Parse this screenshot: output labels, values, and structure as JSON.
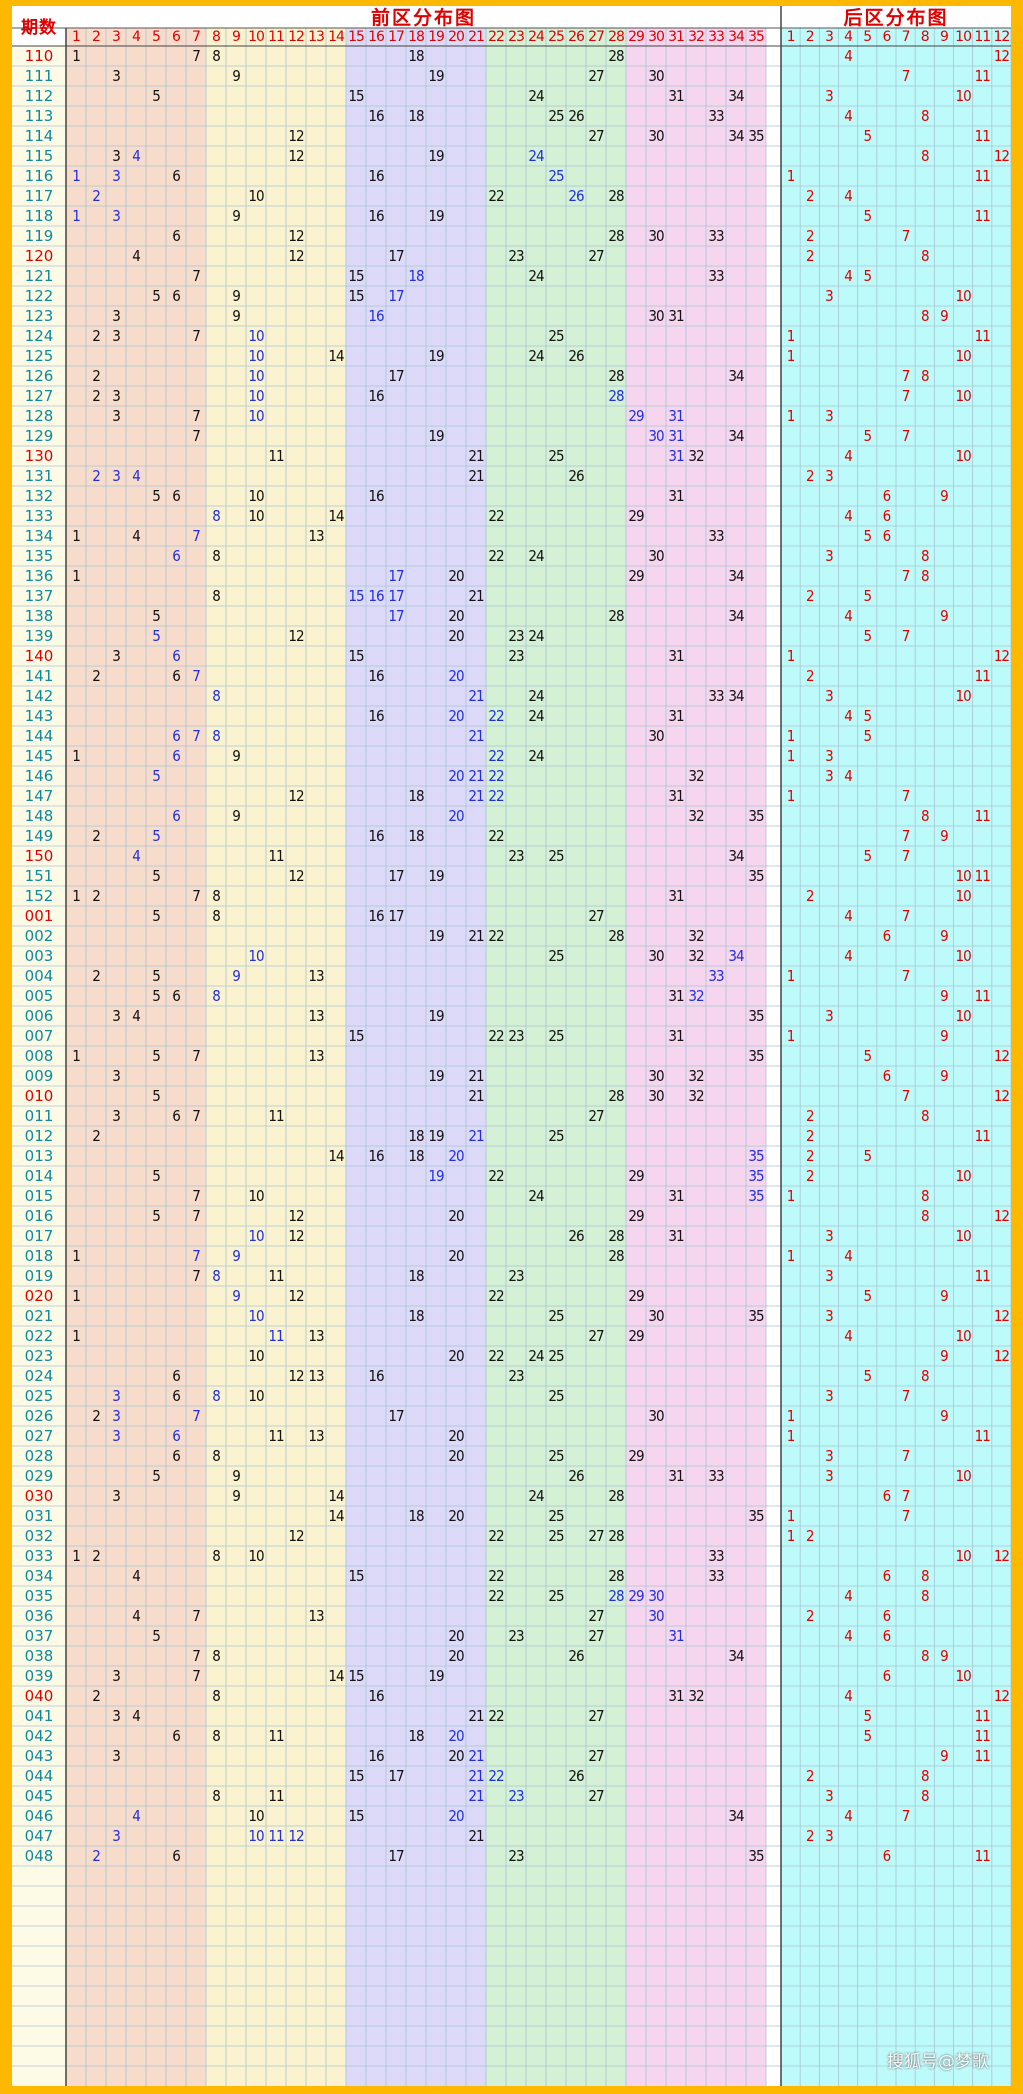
{
  "header": {
    "period_label": "期数",
    "front_title": "前区分布图",
    "back_title": "后区分布图"
  },
  "front_numbers": [
    "1",
    "2",
    "3",
    "4",
    "5",
    "6",
    "7",
    "8",
    "9",
    "10",
    "11",
    "12",
    "13",
    "14",
    "15",
    "16",
    "17",
    "18",
    "19",
    "20",
    "21",
    "22",
    "23",
    "24",
    "25",
    "26",
    "27",
    "28",
    "29",
    "30",
    "31",
    "32",
    "33",
    "34",
    "35"
  ],
  "back_numbers": [
    "1",
    "2",
    "3",
    "4",
    "5",
    "6",
    "7",
    "8",
    "9",
    "10",
    "11",
    "12"
  ],
  "colors": {
    "outer": "#ffb800",
    "zone1": "#f7dccb",
    "zone2": "#fbf3cf",
    "zone3": "#dcdaf8",
    "zone4": "#d4f0d5",
    "zone5": "#f6d6ef",
    "back_zone": "#bdfafa",
    "period_col": "#fdfbe6",
    "grid": "#a9c4d3",
    "red": "#e00000",
    "teal": "#0b8aa0",
    "blue": "#1f2fe0"
  },
  "watermark": "搜狐号@梦歌",
  "rows": [
    {
      "p": "110",
      "red": true,
      "f": [
        1,
        7,
        8,
        18,
        28
      ],
      "b": [
        4,
        12
      ]
    },
    {
      "p": "111",
      "f": [
        3,
        9,
        19,
        27,
        30
      ],
      "b": [
        7,
        11
      ]
    },
    {
      "p": "112",
      "f": [
        5,
        15,
        24,
        31,
        34
      ],
      "b": [
        3,
        10
      ]
    },
    {
      "p": "113",
      "f": [
        16,
        18,
        25,
        26,
        33
      ],
      "b": [
        4,
        8
      ]
    },
    {
      "p": "114",
      "f": [
        12,
        27,
        30,
        34,
        35
      ],
      "b": [
        5,
        11
      ]
    },
    {
      "p": "115",
      "f": [
        3,
        4,
        12,
        19,
        24
      ],
      "bl": [
        4,
        24
      ],
      "b": [
        8,
        12
      ]
    },
    {
      "p": "116",
      "f": [
        1,
        3,
        6,
        16,
        25
      ],
      "bl": [
        1,
        3,
        25
      ],
      "b": [
        1,
        11
      ]
    },
    {
      "p": "117",
      "f": [
        2,
        10,
        22,
        26,
        28
      ],
      "bl": [
        2,
        26
      ],
      "b": [
        2,
        4
      ]
    },
    {
      "p": "118",
      "f": [
        1,
        3,
        9,
        16,
        19
      ],
      "bl": [
        1,
        3
      ],
      "b": [
        5,
        11
      ]
    },
    {
      "p": "119",
      "f": [
        6,
        12,
        28,
        30,
        33
      ],
      "b": [
        2,
        7
      ]
    },
    {
      "p": "120",
      "red": true,
      "f": [
        4,
        12,
        17,
        23,
        27
      ],
      "b": [
        2,
        8
      ]
    },
    {
      "p": "121",
      "f": [
        7,
        15,
        18,
        24,
        33
      ],
      "bl": [
        18
      ],
      "b": [
        4,
        5
      ]
    },
    {
      "p": "122",
      "f": [
        5,
        6,
        9,
        15,
        17
      ],
      "bl": [
        17
      ],
      "b": [
        3,
        10
      ]
    },
    {
      "p": "123",
      "f": [
        3,
        9,
        16,
        30,
        31
      ],
      "bl": [
        16
      ],
      "b": [
        8,
        9
      ]
    },
    {
      "p": "124",
      "f": [
        2,
        3,
        7,
        10,
        25
      ],
      "bl": [
        10
      ],
      "b": [
        1,
        11
      ]
    },
    {
      "p": "125",
      "f": [
        10,
        14,
        19,
        24,
        26
      ],
      "bl": [
        10
      ],
      "b": [
        1,
        10
      ]
    },
    {
      "p": "126",
      "f": [
        2,
        10,
        17,
        28,
        34
      ],
      "bl": [
        10
      ],
      "b": [
        7,
        8
      ]
    },
    {
      "p": "127",
      "f": [
        2,
        3,
        10,
        16,
        28
      ],
      "bl": [
        10,
        28
      ],
      "b": [
        7,
        10
      ]
    },
    {
      "p": "128",
      "f": [
        3,
        7,
        10,
        29,
        31
      ],
      "bl": [
        10,
        29,
        31
      ],
      "b": [
        1,
        3
      ]
    },
    {
      "p": "129",
      "f": [
        7,
        19,
        30,
        31,
        34
      ],
      "bl": [
        30,
        31
      ],
      "b": [
        5,
        7
      ]
    },
    {
      "p": "130",
      "red": true,
      "f": [
        11,
        21,
        25,
        31,
        32
      ],
      "bl": [
        31
      ],
      "b": [
        4,
        10
      ]
    },
    {
      "p": "131",
      "f": [
        2,
        3,
        4,
        21,
        26
      ],
      "bl": [
        2,
        3,
        4
      ],
      "b": [
        2,
        3
      ]
    },
    {
      "p": "132",
      "f": [
        5,
        6,
        10,
        16,
        31
      ],
      "b": [
        6,
        9
      ]
    },
    {
      "p": "133",
      "f": [
        8,
        10,
        14,
        22,
        29
      ],
      "bl": [
        8
      ],
      "b": [
        4,
        6
      ]
    },
    {
      "p": "134",
      "f": [
        1,
        4,
        7,
        13,
        33
      ],
      "bl": [
        7
      ],
      "b": [
        5,
        6
      ]
    },
    {
      "p": "135",
      "f": [
        6,
        8,
        22,
        24,
        30
      ],
      "bl": [
        6
      ],
      "b": [
        3,
        8
      ]
    },
    {
      "p": "136",
      "f": [
        1,
        17,
        20,
        29,
        34
      ],
      "bl": [
        17
      ],
      "b": [
        7,
        8
      ]
    },
    {
      "p": "137",
      "f": [
        8,
        15,
        16,
        17,
        21
      ],
      "bl": [
        15,
        16,
        17
      ],
      "b": [
        2,
        5
      ]
    },
    {
      "p": "138",
      "f": [
        5,
        17,
        20,
        28,
        34
      ],
      "bl": [
        17
      ],
      "b": [
        4,
        9
      ]
    },
    {
      "p": "139",
      "f": [
        5,
        12,
        20,
        23,
        24
      ],
      "bl": [
        5
      ],
      "b": [
        5,
        7
      ]
    },
    {
      "p": "140",
      "red": true,
      "f": [
        3,
        6,
        15,
        23,
        31
      ],
      "bl": [
        6
      ],
      "b": [
        1,
        12
      ]
    },
    {
      "p": "141",
      "f": [
        2,
        6,
        7,
        16,
        20
      ],
      "bl": [
        7,
        20
      ],
      "b": [
        2,
        11
      ]
    },
    {
      "p": "142",
      "f": [
        8,
        21,
        24,
        33,
        34
      ],
      "bl": [
        8,
        21
      ],
      "b": [
        3,
        10
      ]
    },
    {
      "p": "143",
      "f": [
        16,
        20,
        22,
        24,
        31
      ],
      "bl": [
        20,
        22
      ],
      "b": [
        4,
        5
      ]
    },
    {
      "p": "144",
      "f": [
        6,
        7,
        8,
        21,
        30
      ],
      "bl": [
        6,
        7,
        8,
        21
      ],
      "b": [
        1,
        5
      ]
    },
    {
      "p": "145",
      "f": [
        1,
        6,
        9,
        22,
        24
      ],
      "bl": [
        6,
        22
      ],
      "b": [
        1,
        3
      ]
    },
    {
      "p": "146",
      "f": [
        5,
        20,
        21,
        22,
        32
      ],
      "bl": [
        5,
        20,
        21,
        22
      ],
      "b": [
        3,
        4
      ]
    },
    {
      "p": "147",
      "f": [
        12,
        18,
        21,
        22,
        31
      ],
      "bl": [
        21,
        22
      ],
      "b": [
        1,
        7
      ]
    },
    {
      "p": "148",
      "f": [
        6,
        9,
        20,
        32,
        35
      ],
      "bl": [
        6,
        20
      ],
      "b": [
        8,
        11
      ]
    },
    {
      "p": "149",
      "f": [
        2,
        5,
        16,
        18,
        22
      ],
      "bl": [
        5
      ],
      "b": [
        7,
        9
      ]
    },
    {
      "p": "150",
      "red": true,
      "f": [
        4,
        11,
        23,
        25,
        34
      ],
      "bl": [
        4
      ],
      "b": [
        5,
        7
      ]
    },
    {
      "p": "151",
      "f": [
        5,
        12,
        17,
        19,
        35
      ],
      "b": [
        10,
        11
      ]
    },
    {
      "p": "152",
      "f": [
        1,
        2,
        7,
        8,
        31
      ],
      "b": [
        2,
        10
      ]
    },
    {
      "p": "001",
      "red": true,
      "f": [
        5,
        8,
        16,
        17,
        27
      ],
      "b": [
        4,
        7
      ]
    },
    {
      "p": "002",
      "f": [
        19,
        21,
        22,
        28,
        32
      ],
      "b": [
        6,
        9
      ]
    },
    {
      "p": "003",
      "f": [
        10,
        25,
        30,
        32,
        34
      ],
      "bl": [
        10,
        34
      ],
      "b": [
        4,
        10
      ]
    },
    {
      "p": "004",
      "f": [
        2,
        5,
        9,
        13,
        33
      ],
      "bl": [
        9,
        33
      ],
      "b": [
        1,
        7
      ]
    },
    {
      "p": "005",
      "f": [
        5,
        6,
        8,
        31,
        32
      ],
      "bl": [
        8,
        32
      ],
      "b": [
        9,
        11
      ]
    },
    {
      "p": "006",
      "f": [
        3,
        4,
        13,
        19,
        35
      ],
      "b": [
        3,
        10
      ]
    },
    {
      "p": "007",
      "f": [
        15,
        22,
        23,
        25,
        31
      ],
      "b": [
        1,
        9
      ]
    },
    {
      "p": "008",
      "f": [
        1,
        5,
        7,
        13,
        35
      ],
      "b": [
        5,
        12
      ]
    },
    {
      "p": "009",
      "f": [
        3,
        19,
        21,
        30,
        32
      ],
      "b": [
        6,
        9
      ]
    },
    {
      "p": "010",
      "red": true,
      "f": [
        5,
        21,
        28,
        30,
        32
      ],
      "b": [
        7,
        12
      ]
    },
    {
      "p": "011",
      "f": [
        3,
        6,
        7,
        11,
        27
      ],
      "b": [
        2,
        8
      ]
    },
    {
      "p": "012",
      "f": [
        2,
        18,
        19,
        21,
        25
      ],
      "bl": [
        21
      ],
      "b": [
        2,
        11
      ]
    },
    {
      "p": "013",
      "f": [
        14,
        16,
        18,
        20,
        35
      ],
      "bl": [
        20,
        35
      ],
      "b": [
        2,
        5
      ]
    },
    {
      "p": "014",
      "f": [
        5,
        19,
        22,
        29,
        35
      ],
      "bl": [
        19,
        35
      ],
      "b": [
        2,
        10
      ]
    },
    {
      "p": "015",
      "f": [
        7,
        10,
        24,
        31,
        35
      ],
      "bl": [
        35
      ],
      "b": [
        1,
        8
      ]
    },
    {
      "p": "016",
      "f": [
        5,
        7,
        12,
        20,
        29
      ],
      "b": [
        8,
        12
      ]
    },
    {
      "p": "017",
      "f": [
        10,
        12,
        26,
        28,
        31
      ],
      "bl": [
        10
      ],
      "b": [
        3,
        10
      ]
    },
    {
      "p": "018",
      "f": [
        1,
        7,
        9,
        20,
        28
      ],
      "bl": [
        7,
        9
      ],
      "b": [
        1,
        4
      ]
    },
    {
      "p": "019",
      "f": [
        7,
        8,
        11,
        18,
        23
      ],
      "bl": [
        8
      ],
      "b": [
        3,
        11
      ]
    },
    {
      "p": "020",
      "red": true,
      "f": [
        1,
        9,
        12,
        22,
        29
      ],
      "bl": [
        9
      ],
      "b": [
        5,
        9
      ]
    },
    {
      "p": "021",
      "f": [
        10,
        18,
        25,
        30,
        35
      ],
      "bl": [
        10
      ],
      "b": [
        3,
        12
      ]
    },
    {
      "p": "022",
      "f": [
        1,
        11,
        13,
        27,
        29
      ],
      "bl": [
        11
      ],
      "b": [
        4,
        10
      ]
    },
    {
      "p": "023",
      "f": [
        10,
        20,
        22,
        24,
        25
      ],
      "b": [
        9,
        12
      ]
    },
    {
      "p": "024",
      "f": [
        6,
        12,
        13,
        16,
        23
      ],
      "b": [
        5,
        8
      ]
    },
    {
      "p": "025",
      "f": [
        3,
        6,
        8,
        10,
        25
      ],
      "bl": [
        3,
        8
      ],
      "b": [
        3,
        7
      ]
    },
    {
      "p": "026",
      "f": [
        2,
        3,
        7,
        17,
        30
      ],
      "bl": [
        3,
        7
      ],
      "b": [
        1,
        9
      ]
    },
    {
      "p": "027",
      "f": [
        3,
        6,
        11,
        13,
        20
      ],
      "bl": [
        3,
        6
      ],
      "b": [
        1,
        11
      ]
    },
    {
      "p": "028",
      "f": [
        6,
        8,
        20,
        25,
        29
      ],
      "b": [
        3,
        7
      ]
    },
    {
      "p": "029",
      "f": [
        5,
        9,
        26,
        31,
        33
      ],
      "b": [
        3,
        10
      ]
    },
    {
      "p": "030",
      "red": true,
      "f": [
        3,
        9,
        14,
        24,
        28
      ],
      "b": [
        6,
        7
      ]
    },
    {
      "p": "031",
      "f": [
        14,
        18,
        20,
        25,
        35
      ],
      "b": [
        1,
        7
      ]
    },
    {
      "p": "032",
      "f": [
        12,
        22,
        25,
        27,
        28
      ],
      "b": [
        1,
        2
      ]
    },
    {
      "p": "033",
      "f": [
        1,
        2,
        8,
        10,
        33
      ],
      "b": [
        10,
        12
      ]
    },
    {
      "p": "034",
      "f": [
        4,
        15,
        22,
        28,
        33
      ],
      "b": [
        6,
        8
      ]
    },
    {
      "p": "035",
      "f": [
        22,
        25,
        28,
        29,
        30
      ],
      "bl": [
        28,
        29,
        30
      ],
      "b": [
        4,
        8
      ]
    },
    {
      "p": "036",
      "f": [
        4,
        7,
        13,
        27,
        30
      ],
      "bl": [
        30
      ],
      "b": [
        2,
        6
      ]
    },
    {
      "p": "037",
      "f": [
        5,
        20,
        23,
        27,
        31
      ],
      "bl": [
        31
      ],
      "b": [
        4,
        6
      ]
    },
    {
      "p": "038",
      "f": [
        7,
        8,
        20,
        26,
        34
      ],
      "b": [
        8,
        9
      ]
    },
    {
      "p": "039",
      "f": [
        3,
        7,
        14,
        15,
        19
      ],
      "b": [
        6,
        10
      ]
    },
    {
      "p": "040",
      "red": true,
      "f": [
        2,
        8,
        16,
        31,
        32
      ],
      "b": [
        4,
        12
      ]
    },
    {
      "p": "041",
      "f": [
        3,
        4,
        21,
        22,
        27
      ],
      "b": [
        5,
        11
      ]
    },
    {
      "p": "042",
      "f": [
        6,
        8,
        11,
        18,
        20
      ],
      "bl": [
        20
      ],
      "b": [
        5,
        11
      ]
    },
    {
      "p": "043",
      "f": [
        3,
        16,
        20,
        21,
        27
      ],
      "bl": [
        21
      ],
      "b": [
        9,
        11
      ]
    },
    {
      "p": "044",
      "f": [
        15,
        17,
        21,
        22,
        26
      ],
      "bl": [
        21,
        22
      ],
      "b": [
        2,
        8
      ]
    },
    {
      "p": "045",
      "f": [
        8,
        11,
        21,
        23,
        27
      ],
      "bl": [
        21,
        23
      ],
      "b": [
        3,
        8
      ]
    },
    {
      "p": "046",
      "f": [
        4,
        10,
        15,
        20,
        34
      ],
      "bl": [
        4,
        20
      ],
      "b": [
        4,
        7
      ]
    },
    {
      "p": "047",
      "f": [
        3,
        10,
        11,
        12,
        21
      ],
      "bl": [
        3,
        10,
        11,
        12
      ],
      "b": [
        2,
        3
      ]
    },
    {
      "p": "048",
      "f": [
        2,
        6,
        17,
        23,
        35
      ],
      "bl": [
        2
      ],
      "b": [
        6,
        11
      ]
    }
  ]
}
